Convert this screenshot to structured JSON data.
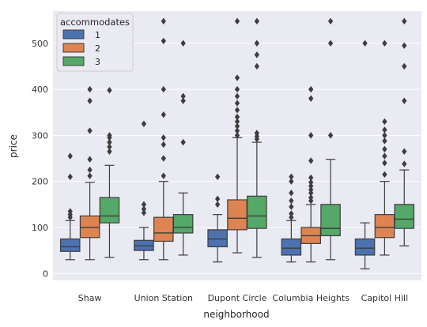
{
  "chart_data": {
    "type": "boxplot",
    "title": "",
    "xlabel": "neighborhood",
    "ylabel": "price",
    "ylim": [
      -15,
      570
    ],
    "yticks": [
      0,
      100,
      200,
      300,
      400,
      500
    ],
    "grid": true,
    "legend_placement": "top-left",
    "legend_title": "accommodates",
    "categories": [
      "Shaw",
      "Union Station",
      "Dupont Circle",
      "Columbia Heights",
      "Capitol Hill"
    ],
    "series": [
      {
        "name": "1",
        "color": "#4c72b0",
        "boxes": [
          {
            "whislo": 30,
            "q1": 48,
            "med": 58,
            "q3": 75,
            "whishi": 115,
            "fliers": [
              122,
              128,
              135,
              210,
              255
            ]
          },
          {
            "whislo": 30,
            "q1": 50,
            "med": 60,
            "q3": 72,
            "whishi": 100,
            "fliers": [
              132,
              140,
              150,
              325
            ]
          },
          {
            "whislo": 25,
            "q1": 58,
            "med": 75,
            "q3": 95,
            "whishi": 128,
            "fliers": [
              150,
              162,
              210
            ]
          },
          {
            "whislo": 25,
            "q1": 40,
            "med": 55,
            "q3": 75,
            "whishi": 115,
            "fliers": [
              122,
              130,
              145,
              158,
              175,
              200,
              210
            ]
          },
          {
            "whislo": 10,
            "q1": 40,
            "med": 55,
            "q3": 75,
            "whishi": 110,
            "fliers": [
              500
            ]
          }
        ]
      },
      {
        "name": "2",
        "color": "#dd8452",
        "boxes": [
          {
            "whislo": 30,
            "q1": 78,
            "med": 100,
            "q3": 125,
            "whishi": 198,
            "fliers": [
              212,
              225,
              248,
              310,
              375,
              400
            ]
          },
          {
            "whislo": 30,
            "q1": 70,
            "med": 88,
            "q3": 122,
            "whishi": 200,
            "fliers": [
              212,
              250,
              280,
              295,
              345,
              400,
              505,
              548
            ]
          },
          {
            "whislo": 45,
            "q1": 95,
            "med": 120,
            "q3": 160,
            "whishi": 295,
            "fliers": [
              300,
              310,
              320,
              330,
              340,
              355,
              370,
              385,
              400,
              425,
              548
            ]
          },
          {
            "whislo": 25,
            "q1": 65,
            "med": 82,
            "q3": 100,
            "whishi": 150,
            "fliers": [
              158,
              165,
              175,
              182,
              190,
              198,
              208,
              245,
              300,
              380,
              400
            ]
          },
          {
            "whislo": 40,
            "q1": 78,
            "med": 100,
            "q3": 128,
            "whishi": 200,
            "fliers": [
              215,
              240,
              255,
              270,
              288,
              300,
              312,
              330,
              500
            ]
          }
        ]
      },
      {
        "name": "3",
        "color": "#55a868",
        "boxes": [
          {
            "whislo": 35,
            "q1": 110,
            "med": 125,
            "q3": 165,
            "whishi": 235,
            "fliers": [
              265,
              275,
              285,
              295,
              300,
              398
            ]
          },
          {
            "whislo": 40,
            "q1": 88,
            "med": 100,
            "q3": 128,
            "whishi": 175,
            "fliers": [
              285,
              375,
              385,
              500
            ]
          },
          {
            "whislo": 35,
            "q1": 98,
            "med": 125,
            "q3": 168,
            "whishi": 285,
            "fliers": [
              292,
              298,
              305,
              450,
              475,
              500,
              548
            ]
          },
          {
            "whislo": 30,
            "q1": 82,
            "med": 98,
            "q3": 150,
            "whishi": 248,
            "fliers": [
              300,
              500,
              548
            ]
          },
          {
            "whislo": 60,
            "q1": 98,
            "med": 118,
            "q3": 150,
            "whishi": 225,
            "fliers": [
              238,
              265,
              375,
              450,
              495,
              548
            ]
          }
        ]
      }
    ]
  }
}
